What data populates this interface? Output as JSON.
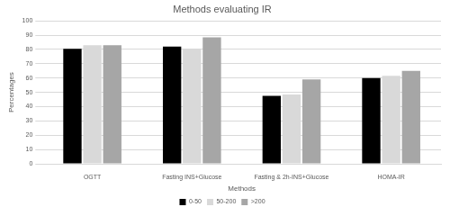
{
  "chart_data": {
    "type": "bar",
    "title": "Methods evaluating IR",
    "x_label": "Methods",
    "y_label": "Percentages",
    "categories": [
      "OGTT",
      "Fasting INS+Glucose",
      "Fasting & 2h-INS+Glucose",
      "HOMA-IR"
    ],
    "series": [
      {
        "name": "0-50",
        "color": "#000000",
        "values": [
          80.5,
          82,
          47.5,
          60
        ]
      },
      {
        "name": "50-200",
        "color": "#d9d9d9",
        "values": [
          83,
          80.5,
          48.5,
          61.5
        ]
      },
      {
        "name": ">200",
        "color": "#a6a6a6",
        "values": [
          83,
          88.5,
          59,
          65
        ]
      }
    ],
    "ylim": [
      0,
      100
    ],
    "yticks": [
      0,
      10,
      20,
      30,
      40,
      50,
      60,
      70,
      80,
      90,
      100
    ],
    "grid": true,
    "legend": "bottom"
  }
}
